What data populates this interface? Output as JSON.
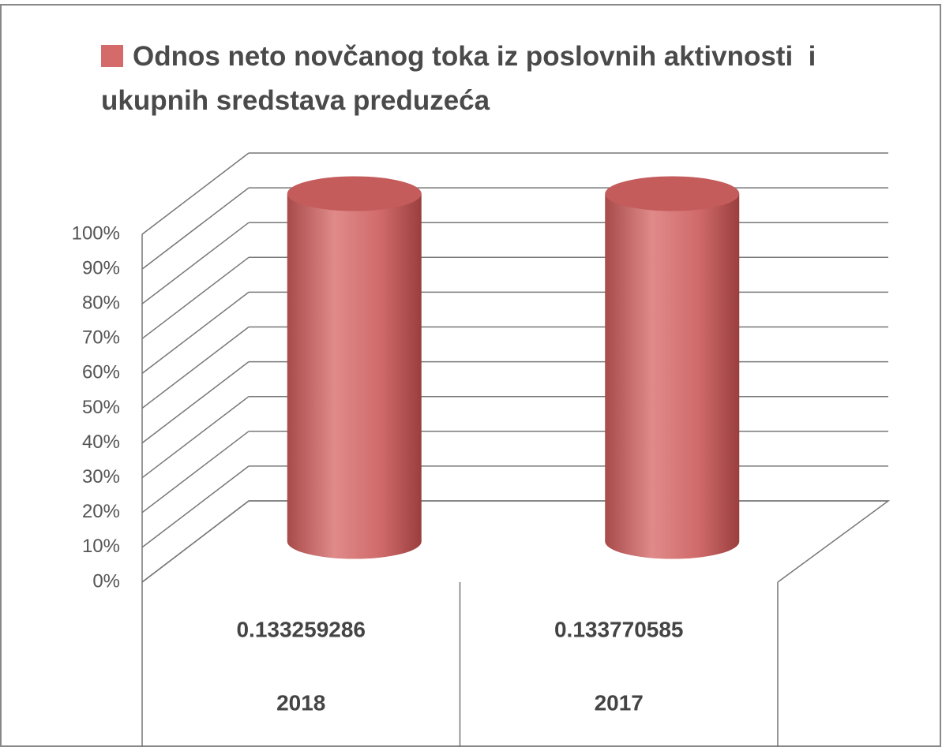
{
  "chart_data": {
    "type": "cylinder",
    "stacked_percent": true,
    "categories": [
      "2018",
      "2017"
    ],
    "series": [
      {
        "name": "Odnos neto novčanog toka iz poslovnih aktivnosti  i ukupnih sredstava preduzeća",
        "color": "#d46a6a",
        "values": [
          0.133259286,
          0.133770585
        ]
      }
    ],
    "ylim": [
      0,
      100
    ],
    "yticks": [
      {
        "value": 0,
        "label": "0%"
      },
      {
        "value": 10,
        "label": "10%"
      },
      {
        "value": 20,
        "label": "20%"
      },
      {
        "value": 30,
        "label": "30%"
      },
      {
        "value": 40,
        "label": "40%"
      },
      {
        "value": 50,
        "label": "50%"
      },
      {
        "value": 60,
        "label": "60%"
      },
      {
        "value": 70,
        "label": "70%"
      },
      {
        "value": 80,
        "label": "80%"
      },
      {
        "value": 90,
        "label": "90%"
      },
      {
        "value": 100,
        "label": "100%"
      }
    ],
    "grid": true,
    "legend": "top",
    "data_table": true
  }
}
